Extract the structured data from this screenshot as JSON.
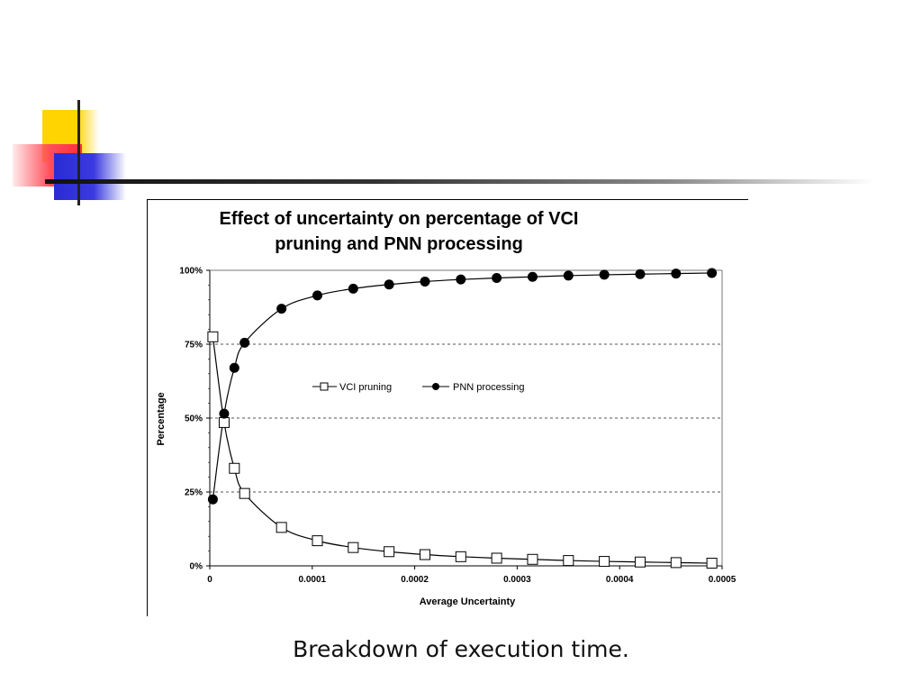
{
  "slide": {
    "caption": "Breakdown of execution time.",
    "decoration_colors": {
      "yellow": "#ffd400",
      "red": "#ff3c46",
      "blue": "#2b2bd4",
      "line": "#222222"
    }
  },
  "chart_data": {
    "type": "line",
    "title": "Effect of uncertainty on percentage of VCI pruning and PNN processing",
    "title_lines": [
      "Effect of uncertainty on percentage of VCI",
      "pruning and PNN processing"
    ],
    "xlabel": "Average Uncertainty",
    "ylabel": "Percentage",
    "xlim": [
      0,
      0.0005
    ],
    "ylim": [
      0,
      100
    ],
    "x_ticks": [
      {
        "value": 0,
        "label": "0"
      },
      {
        "value": 0.0001,
        "label": "0.0001"
      },
      {
        "value": 0.0002,
        "label": "0.0002"
      },
      {
        "value": 0.0003,
        "label": "0.0003"
      },
      {
        "value": 0.0004,
        "label": "0.0004"
      },
      {
        "value": 0.0005,
        "label": "0.0005"
      }
    ],
    "y_ticks": [
      {
        "value": 0,
        "label": "0%"
      },
      {
        "value": 25,
        "label": "25%"
      },
      {
        "value": 50,
        "label": "50%"
      },
      {
        "value": 75,
        "label": "75%"
      },
      {
        "value": 100,
        "label": "100%"
      }
    ],
    "grid": "horizontal dashed at 25%, 50%, 75%",
    "legend_position": "center",
    "x": [
      3e-06,
      1.4e-05,
      2.4e-05,
      3.4e-05,
      7e-05,
      0.000105,
      0.00014,
      0.000175,
      0.00021,
      0.000245,
      0.00028,
      0.000315,
      0.00035,
      0.000385,
      0.00042,
      0.000455,
      0.00049
    ],
    "series": [
      {
        "name": "VCI pruning",
        "marker": "open-square",
        "color": "#000000",
        "values": [
          77.5,
          48.5,
          33,
          24.5,
          13,
          8.5,
          6.2,
          4.8,
          3.8,
          3.1,
          2.6,
          2.2,
          1.8,
          1.5,
          1.3,
          1.1,
          0.9
        ]
      },
      {
        "name": "PNN processing",
        "marker": "filled-circle",
        "color": "#000000",
        "values": [
          22.5,
          51.5,
          67,
          75.5,
          87,
          91.5,
          93.8,
          95.2,
          96.2,
          96.9,
          97.4,
          97.8,
          98.2,
          98.5,
          98.7,
          98.9,
          99.1
        ]
      }
    ]
  }
}
